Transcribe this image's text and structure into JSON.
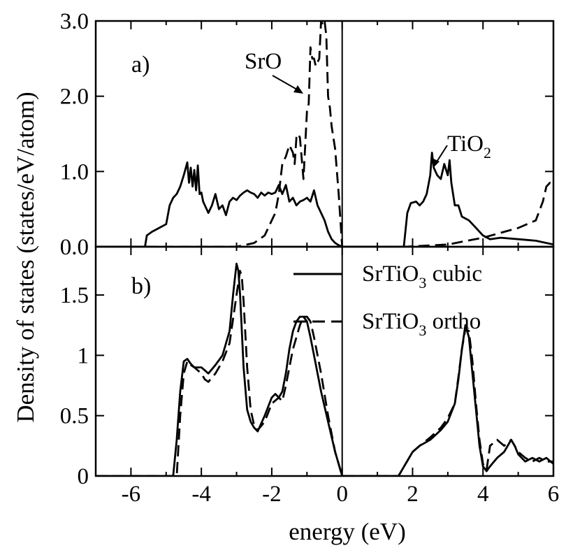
{
  "chart_data": [
    {
      "panel": "a",
      "type": "line",
      "panel_label": "a)",
      "xlabel": "energy (eV)",
      "ylabel": "Density of states  (states/eV/atom)",
      "xlim": [
        -7,
        6
      ],
      "ylim": [
        0,
        3.0
      ],
      "x_ticks": [],
      "y_ticks": [
        0.0,
        1.0,
        2.0,
        3.0
      ],
      "y_tick_labels": [
        "0.0",
        "1.0",
        "2.0",
        "3.0"
      ],
      "vertical_line_at": 0,
      "annotations": [
        {
          "text": "SrO",
          "series": "SrO"
        },
        {
          "text": "TiO",
          "subscript": "2",
          "series": "TiO2"
        }
      ],
      "series": [
        {
          "name": "TiO2",
          "style": "solid",
          "x": [
            -7.0,
            -5.6,
            -5.55,
            -5.4,
            -5.2,
            -5.0,
            -4.9,
            -4.8,
            -4.7,
            -4.6,
            -4.5,
            -4.4,
            -4.35,
            -4.3,
            -4.25,
            -4.2,
            -4.15,
            -4.1,
            -4.05,
            -4.0,
            -3.95,
            -3.9,
            -3.85,
            -3.8,
            -3.7,
            -3.6,
            -3.5,
            -3.4,
            -3.3,
            -3.2,
            -3.1,
            -3.0,
            -2.9,
            -2.8,
            -2.7,
            -2.6,
            -2.5,
            -2.4,
            -2.3,
            -2.2,
            -2.1,
            -2.0,
            -1.9,
            -1.8,
            -1.7,
            -1.6,
            -1.5,
            -1.4,
            -1.3,
            -1.2,
            -1.1,
            -1.0,
            -0.9,
            -0.8,
            -0.7,
            -0.6,
            -0.5,
            -0.4,
            -0.3,
            -0.2,
            -0.1,
            0.0,
            1.75,
            1.85,
            1.95,
            2.1,
            2.2,
            2.3,
            2.4,
            2.5,
            2.55,
            2.6,
            2.7,
            2.8,
            2.9,
            3.0,
            3.05,
            3.1,
            3.2,
            3.3,
            3.4,
            3.6,
            3.8,
            4.0,
            4.2,
            4.5,
            5.0,
            5.5,
            6.0
          ],
          "y": [
            0.0,
            0.0,
            0.15,
            0.2,
            0.25,
            0.3,
            0.55,
            0.65,
            0.7,
            0.8,
            0.95,
            1.12,
            0.85,
            1.05,
            0.8,
            1.02,
            0.75,
            1.08,
            0.7,
            0.72,
            0.6,
            0.55,
            0.5,
            0.45,
            0.55,
            0.7,
            0.5,
            0.55,
            0.42,
            0.6,
            0.65,
            0.62,
            0.68,
            0.72,
            0.75,
            0.72,
            0.7,
            0.65,
            0.72,
            0.68,
            0.72,
            0.7,
            0.72,
            0.82,
            0.7,
            0.82,
            0.6,
            0.65,
            0.55,
            0.6,
            0.62,
            0.65,
            0.6,
            0.75,
            0.55,
            0.45,
            0.35,
            0.2,
            0.1,
            0.05,
            0.02,
            0.0,
            0.0,
            0.45,
            0.58,
            0.6,
            0.55,
            0.6,
            0.7,
            0.95,
            1.25,
            1.05,
            0.95,
            0.9,
            1.1,
            0.95,
            1.15,
            0.85,
            0.55,
            0.55,
            0.4,
            0.35,
            0.25,
            0.15,
            0.1,
            0.12,
            0.1,
            0.08,
            0.03
          ]
        },
        {
          "name": "SrO",
          "style": "dashed",
          "x": [
            -7.0,
            -3.0,
            -2.5,
            -2.2,
            -2.0,
            -1.9,
            -1.8,
            -1.7,
            -1.6,
            -1.5,
            -1.45,
            -1.4,
            -1.35,
            -1.3,
            -1.25,
            -1.2,
            -1.1,
            -1.0,
            -0.95,
            -0.9,
            -0.85,
            -0.8,
            -0.75,
            -0.7,
            -0.65,
            -0.6,
            -0.55,
            -0.5,
            -0.45,
            -0.4,
            -0.35,
            -0.3,
            -0.2,
            -0.1,
            0.0,
            1.8,
            3.0,
            4.0,
            5.0,
            5.5,
            5.7,
            5.8,
            5.9,
            6.0
          ],
          "y": [
            0.0,
            0.0,
            0.05,
            0.15,
            0.35,
            0.45,
            0.7,
            1.1,
            1.2,
            1.35,
            1.3,
            1.25,
            1.1,
            1.45,
            1.5,
            1.45,
            0.9,
            1.8,
            1.9,
            2.65,
            2.5,
            2.5,
            2.4,
            2.45,
            2.5,
            3.0,
            2.95,
            3.0,
            2.8,
            2.0,
            1.85,
            1.6,
            1.3,
            0.7,
            0.0,
            0.0,
            0.03,
            0.12,
            0.25,
            0.35,
            0.6,
            0.8,
            0.85,
            0.8
          ]
        }
      ]
    },
    {
      "panel": "b",
      "type": "line",
      "panel_label": "b)",
      "xlabel": "energy (eV)",
      "ylabel": "Density of states  (states/eV/atom)",
      "xlim": [
        -7,
        6
      ],
      "ylim": [
        0,
        1.9
      ],
      "x_ticks": [
        -6,
        -4,
        -2,
        0,
        2,
        4,
        6
      ],
      "x_tick_labels": [
        "-6",
        "-4",
        "-2",
        "0",
        "2",
        "4",
        "6"
      ],
      "y_ticks": [
        0,
        0.5,
        1,
        1.5
      ],
      "y_tick_labels": [
        "0",
        "0.5",
        "1",
        "1.5"
      ],
      "vertical_line_at": 0,
      "legend_position": "top-right",
      "series": [
        {
          "name": "SrTiO3 cubic",
          "legend_text": "SrTiO",
          "legend_subscript": "3",
          "legend_suffix": " cubic",
          "style": "solid",
          "x": [
            -7.0,
            -4.8,
            -4.7,
            -4.6,
            -4.5,
            -4.4,
            -4.3,
            -4.2,
            -4.0,
            -3.8,
            -3.6,
            -3.4,
            -3.2,
            -3.1,
            -3.0,
            -2.95,
            -2.9,
            -2.8,
            -2.7,
            -2.6,
            -2.5,
            -2.4,
            -2.2,
            -2.0,
            -1.9,
            -1.8,
            -1.7,
            -1.6,
            -1.5,
            -1.4,
            -1.3,
            -1.2,
            -1.1,
            -1.0,
            -0.9,
            -0.8,
            -0.6,
            -0.4,
            -0.2,
            0.0,
            1.6,
            1.8,
            2.0,
            2.2,
            2.5,
            2.8,
            3.0,
            3.2,
            3.3,
            3.4,
            3.5,
            3.6,
            3.7,
            3.8,
            3.9,
            4.0,
            4.1,
            4.2,
            4.4,
            4.6,
            4.8,
            4.9,
            5.0,
            5.2,
            5.4,
            5.6,
            5.8,
            6.0
          ],
          "y": [
            0.0,
            0.0,
            0.3,
            0.7,
            0.95,
            0.97,
            0.93,
            0.9,
            0.9,
            0.85,
            0.92,
            1.0,
            1.2,
            1.5,
            1.76,
            1.7,
            1.5,
            0.9,
            0.55,
            0.45,
            0.4,
            0.37,
            0.5,
            0.65,
            0.68,
            0.65,
            0.7,
            0.85,
            1.05,
            1.2,
            1.28,
            1.32,
            1.32,
            1.28,
            1.15,
            1.0,
            0.7,
            0.45,
            0.2,
            0.0,
            0.0,
            0.1,
            0.2,
            0.25,
            0.3,
            0.38,
            0.45,
            0.6,
            0.8,
            1.05,
            1.25,
            1.15,
            0.85,
            0.55,
            0.25,
            0.08,
            0.04,
            0.08,
            0.15,
            0.2,
            0.3,
            0.25,
            0.18,
            0.12,
            0.15,
            0.12,
            0.15,
            0.1
          ]
        },
        {
          "name": "SrTiO3 ortho",
          "legend_text": "SrTiO",
          "legend_subscript": "3",
          "legend_suffix": " ortho",
          "style": "dashed",
          "x": [
            -7.0,
            -4.7,
            -4.6,
            -4.5,
            -4.4,
            -4.3,
            -4.2,
            -4.0,
            -3.9,
            -3.8,
            -3.6,
            -3.4,
            -3.2,
            -3.1,
            -3.0,
            -2.9,
            -2.85,
            -2.8,
            -2.7,
            -2.6,
            -2.5,
            -2.4,
            -2.2,
            -2.0,
            -1.8,
            -1.7,
            -1.6,
            -1.5,
            -1.4,
            -1.3,
            -1.2,
            -1.1,
            -1.0,
            -0.9,
            -0.8,
            -0.6,
            -0.4,
            -0.2,
            0.0,
            1.6,
            1.8,
            2.0,
            2.2,
            2.5,
            2.8,
            3.0,
            3.2,
            3.3,
            3.4,
            3.5,
            3.6,
            3.7,
            3.8,
            3.9,
            4.0,
            4.1,
            4.2,
            4.4,
            4.6,
            4.8,
            5.0,
            5.2,
            5.4,
            5.6,
            5.8,
            6.0
          ],
          "y": [
            0.0,
            0.0,
            0.5,
            0.85,
            0.95,
            0.92,
            0.9,
            0.85,
            0.8,
            0.78,
            0.85,
            0.95,
            1.1,
            1.3,
            1.5,
            1.7,
            1.65,
            1.45,
            0.9,
            0.55,
            0.42,
            0.38,
            0.45,
            0.6,
            0.65,
            0.62,
            0.75,
            0.9,
            1.05,
            1.15,
            1.25,
            1.32,
            1.32,
            1.28,
            1.15,
            0.85,
            0.5,
            0.2,
            0.0,
            0.0,
            0.1,
            0.2,
            0.25,
            0.32,
            0.4,
            0.48,
            0.6,
            0.82,
            1.05,
            1.22,
            1.2,
            0.95,
            0.6,
            0.3,
            0.1,
            0.05,
            0.25,
            0.3,
            0.25,
            0.3,
            0.2,
            0.15,
            0.12,
            0.15,
            0.12,
            0.12
          ]
        }
      ]
    }
  ]
}
